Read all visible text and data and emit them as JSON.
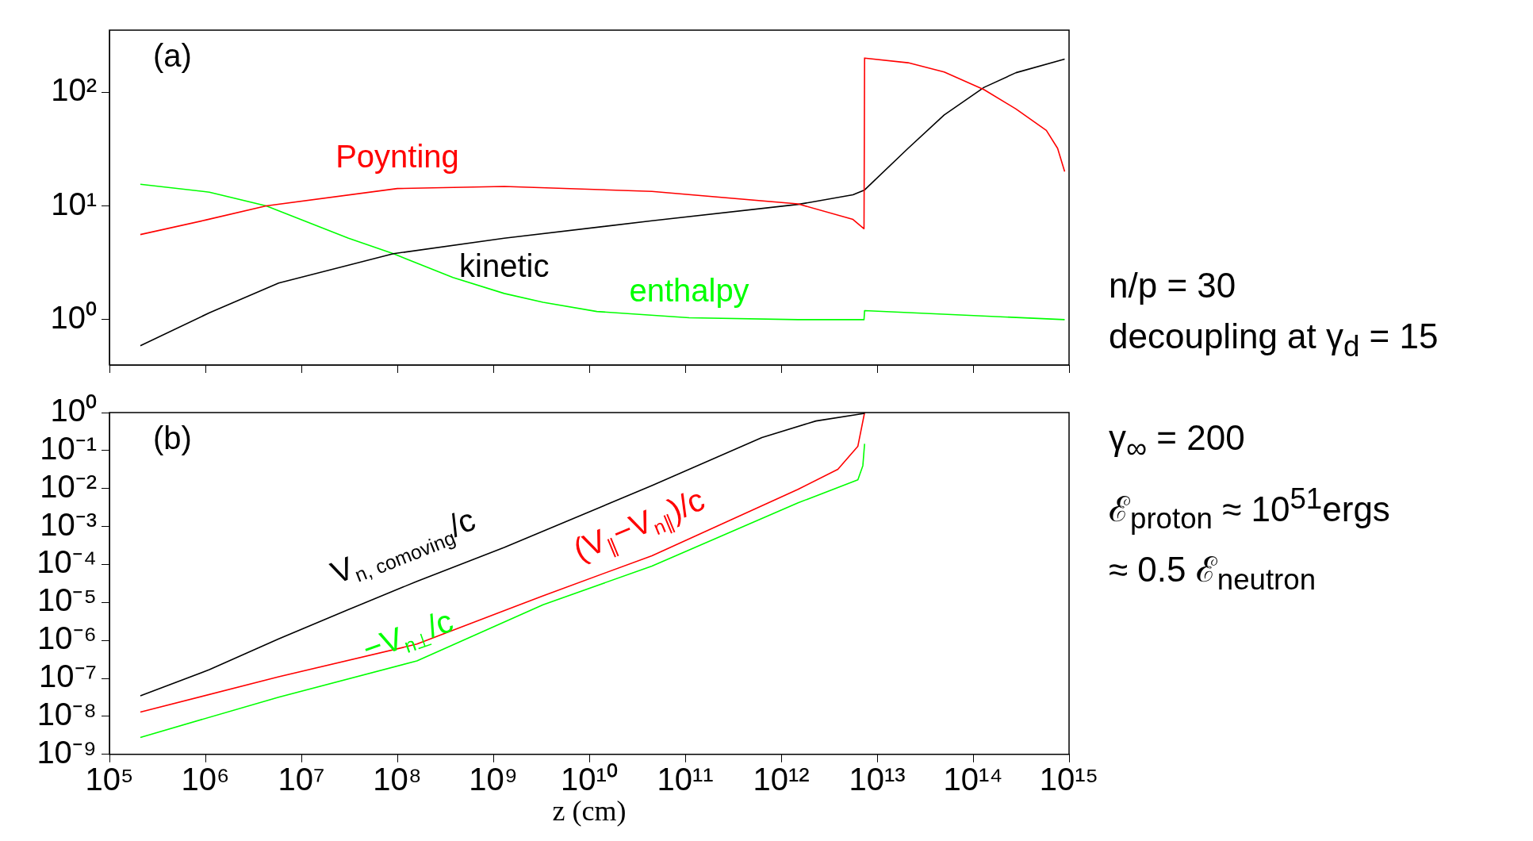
{
  "chart_data": [
    {
      "type": "line",
      "log": "xy",
      "grid": false,
      "tick_labels": "y",
      "xlim": [
        100000.0,
        1000000000000000.0
      ],
      "ylim": [
        0.4,
        350
      ],
      "xticks": [
        {
          "value": 100000.0,
          "label": null
        },
        {
          "value": 1000000.0,
          "label": null
        },
        {
          "value": 10000000.0,
          "label": null
        },
        {
          "value": 100000000.0,
          "label": null
        },
        {
          "value": 1000000000.0,
          "label": null
        },
        {
          "value": 10000000000.0,
          "label": null
        },
        {
          "value": 100000000000.0,
          "label": null
        },
        {
          "value": 1000000000000.0,
          "label": null
        },
        {
          "value": 10000000000000.0,
          "label": null
        },
        {
          "value": 100000000000000.0,
          "label": null
        },
        {
          "value": 1000000000000000.0,
          "label": null
        }
      ],
      "yticks": [
        {
          "value": 1,
          "label": "10⁰"
        },
        {
          "value": 10,
          "label": "10¹"
        },
        {
          "value": 100,
          "label": "10²"
        }
      ],
      "annotations": [
        "(a)",
        "n/p = 30",
        "decoupling at γ$_{d}$ = 15"
      ],
      "series": [
        {
          "name": "Poynting",
          "color": "#ff0000",
          "x": [
            210000.0,
            1000000.0,
            4300000.0,
            100000000.0,
            1300000000.0,
            45000000000.0,
            1500000000000.0,
            5600000000000.0,
            7300000000000.0,
            7400000000000.0,
            21000000000000.0,
            50000000000000.0,
            130000000000000.0,
            280000000000000.0,
            580000000000000.0,
            760000000000000.0,
            900000000000000.0
          ],
          "values": [
            5.6,
            7.5,
            10,
            14.2,
            14.8,
            13.4,
            10.4,
            7.6,
            6.3,
            199,
            181,
            150,
            105,
            71,
            46,
            32,
            20
          ]
        },
        {
          "name": "kinetic",
          "color": "#000000",
          "x": [
            210000.0,
            1100000.0,
            5800000.0,
            91000000.0,
            1300000000.0,
            45000000000.0,
            1500000000000.0,
            5600000000000.0,
            7400000000000.0,
            21000000000000.0,
            50000000000000.0,
            130000000000000.0,
            280000000000000.0,
            900000000000000.0
          ],
          "values": [
            0.59,
            1.15,
            2.1,
            3.8,
            5.2,
            7.4,
            10.3,
            12.5,
            13.8,
            32,
            63,
            110,
            148,
            195
          ]
        },
        {
          "name": "enthalpy",
          "color": "#00ff00",
          "x": [
            210000.0,
            1100000.0,
            4300000.0,
            31000000.0,
            91000000.0,
            380000000.0,
            1300000000.0,
            3300000000.0,
            12000000000.0,
            110000000000.0,
            1500000000000.0,
            7300000000000.0,
            7400000000000.0,
            900000000000000.0
          ],
          "values": [
            15.5,
            13.2,
            10,
            5.2,
            3.8,
            2.35,
            1.7,
            1.42,
            1.18,
            1.04,
            1.0,
            1.0,
            1.2,
            1.0
          ]
        }
      ]
    },
    {
      "type": "line",
      "log": "xy",
      "grid": false,
      "xlabel": "z (cm)",
      "xlim": [
        100000.0,
        1000000000000000.0
      ],
      "ylim": [
        1e-09,
        1
      ],
      "xticks": [
        {
          "value": 100000.0,
          "label": "10⁵"
        },
        {
          "value": 1000000.0,
          "label": "10⁶"
        },
        {
          "value": 10000000.0,
          "label": "10⁷"
        },
        {
          "value": 100000000.0,
          "label": "10⁸"
        },
        {
          "value": 1000000000.0,
          "label": "10⁹"
        },
        {
          "value": 10000000000.0,
          "label": "10¹⁰"
        },
        {
          "value": 100000000000.0,
          "label": "10¹¹"
        },
        {
          "value": 1000000000000.0,
          "label": "10¹²"
        },
        {
          "value": 10000000000000.0,
          "label": "10¹³"
        },
        {
          "value": 100000000000000.0,
          "label": "10¹⁴"
        },
        {
          "value": 1000000000000000.0,
          "label": "10¹⁵"
        }
      ],
      "yticks": [
        {
          "value": 1,
          "label": "10⁰"
        },
        {
          "value": 0.1,
          "label": "10⁻¹"
        },
        {
          "value": 0.01,
          "label": "10⁻²"
        },
        {
          "value": 0.001,
          "label": "10⁻³"
        },
        {
          "value": 0.0001,
          "label": "10⁻⁴"
        },
        {
          "value": 1e-05,
          "label": "10⁻⁵"
        },
        {
          "value": 1e-06,
          "label": "10⁻⁶"
        },
        {
          "value": 1e-07,
          "label": "10⁻⁷"
        },
        {
          "value": 1e-08,
          "label": "10⁻⁸"
        },
        {
          "value": 1e-09,
          "label": "10⁻⁹"
        }
      ],
      "annotations": [
        "(b)",
        "γ$_{∞}$ = 200",
        "ℰ$_{proton}$ ≈ 10$^{51}$ergs",
        "≈ 0.5 ℰ$_{neutron}$"
      ],
      "series": [
        {
          "name": "V$_{n, comoving}$/c",
          "color": "#000000",
          "x": [
            210000.0,
            1100000.0,
            5800000.0,
            31000000.0,
            160000000.0,
            1300000000.0,
            45000000000.0,
            630000000000.0,
            2300000000000.0,
            7400000000000.0
          ],
          "values": [
            3.5e-08,
            1.7e-07,
            1.1e-06,
            6.5e-06,
            3.6e-05,
            0.00028,
            0.012,
            0.22,
            0.6,
            0.95
          ]
        },
        {
          "name": "(V$_{∥}$−V$_{n∥}$)/c",
          "color": "#ff0000",
          "x": [
            210000.0,
            5800000.0,
            160000000.0,
            3300000000.0,
            45000000000.0,
            1500000000000.0,
            3900000000000.0,
            6300000000000.0,
            7400000000000.0
          ],
          "values": [
            1.3e-08,
            1.1e-07,
            8e-07,
            1.5e-05,
            0.00017,
            0.0095,
            0.032,
            0.13,
            1
          ]
        },
        {
          "name": "−V$_{n⊥}$/c",
          "color": "#00ff00",
          "x": [
            210000.0,
            5800000.0,
            160000000.0,
            3300000000.0,
            45000000000.0,
            1500000000000.0,
            6300000000000.0,
            7100000000000.0,
            7400000000000.0
          ],
          "values": [
            2.8e-09,
            3.2e-08,
            2.9e-07,
            8.7e-06,
            9.1e-05,
            0.0042,
            0.017,
            0.04,
            0.15
          ]
        }
      ]
    }
  ]
}
